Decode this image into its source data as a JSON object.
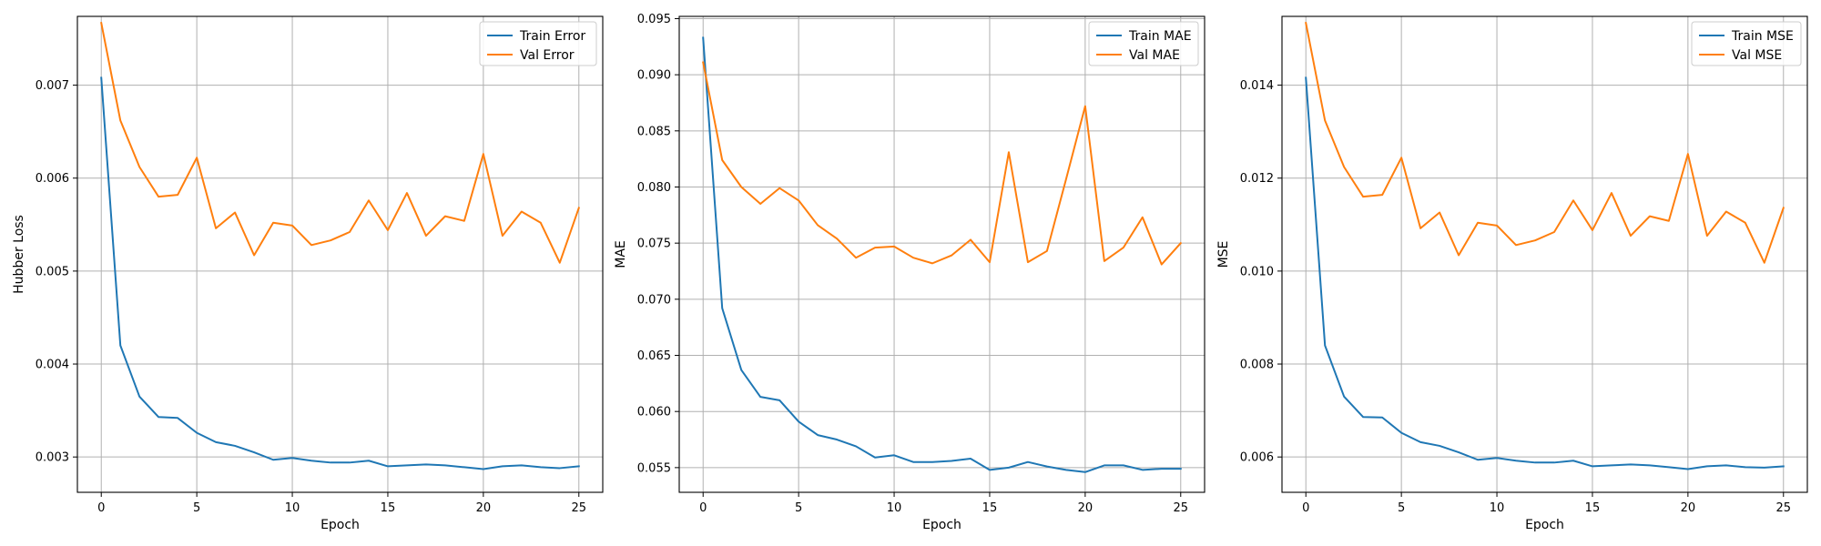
{
  "colors": {
    "train": "#1f77b4",
    "val": "#ff7f0e",
    "grid": "#b0b0b0",
    "axis": "#000000"
  },
  "chart_data": [
    {
      "type": "line",
      "xlabel": "Epoch",
      "ylabel": "Hubber Loss",
      "xlim": [
        -1.25,
        26.25
      ],
      "ylim": [
        0.00262,
        0.00774
      ],
      "xticks": [
        0,
        5,
        10,
        15,
        20,
        25
      ],
      "xtick_labels": [
        "0",
        "5",
        "10",
        "15",
        "20",
        "25"
      ],
      "yticks": [
        0.003,
        0.004,
        0.005,
        0.006,
        0.007
      ],
      "ytick_labels": [
        "0.003",
        "0.004",
        "0.005",
        "0.006",
        "0.007"
      ],
      "grid": true,
      "legend": "top-right",
      "x": [
        0,
        1,
        2,
        3,
        4,
        5,
        6,
        7,
        8,
        9,
        10,
        11,
        12,
        13,
        14,
        15,
        16,
        17,
        18,
        19,
        20,
        21,
        22,
        23,
        24,
        25
      ],
      "series": [
        {
          "name": "Train Error",
          "values": [
            0.00708,
            0.0042,
            0.00365,
            0.00343,
            0.00342,
            0.00326,
            0.00316,
            0.00312,
            0.00305,
            0.00297,
            0.00299,
            0.00296,
            0.00294,
            0.00294,
            0.00296,
            0.0029,
            0.00291,
            0.00292,
            0.00291,
            0.00289,
            0.00287,
            0.0029,
            0.00291,
            0.00289,
            0.00288,
            0.0029
          ]
        },
        {
          "name": "Val Error",
          "values": [
            0.00767,
            0.00662,
            0.00612,
            0.0058,
            0.00582,
            0.00622,
            0.00546,
            0.00563,
            0.00517,
            0.00552,
            0.00549,
            0.00528,
            0.00533,
            0.00542,
            0.00576,
            0.00544,
            0.00584,
            0.00538,
            0.00559,
            0.00554,
            0.00626,
            0.00538,
            0.00564,
            0.00552,
            0.00509,
            0.00568
          ]
        }
      ]
    },
    {
      "type": "line",
      "xlabel": "Epoch",
      "ylabel": "MAE",
      "xlim": [
        -1.25,
        26.25
      ],
      "ylim": [
        0.0528,
        0.0952
      ],
      "xticks": [
        0,
        5,
        10,
        15,
        20,
        25
      ],
      "xtick_labels": [
        "0",
        "5",
        "10",
        "15",
        "20",
        "25"
      ],
      "yticks": [
        0.055,
        0.06,
        0.065,
        0.07,
        0.075,
        0.08,
        0.085,
        0.09,
        0.095
      ],
      "ytick_labels": [
        "0.055",
        "0.060",
        "0.065",
        "0.070",
        "0.075",
        "0.080",
        "0.085",
        "0.090",
        "0.095"
      ],
      "grid": true,
      "legend": "top-right",
      "x": [
        0,
        1,
        2,
        3,
        4,
        5,
        6,
        7,
        8,
        9,
        10,
        11,
        12,
        13,
        14,
        15,
        16,
        17,
        18,
        19,
        20,
        21,
        22,
        23,
        24,
        25
      ],
      "series": [
        {
          "name": "Train MAE",
          "values": [
            0.0933,
            0.0692,
            0.0637,
            0.0613,
            0.061,
            0.0591,
            0.0579,
            0.0575,
            0.0569,
            0.0559,
            0.0561,
            0.0555,
            0.0555,
            0.0556,
            0.0558,
            0.0548,
            0.055,
            0.0555,
            0.0551,
            0.0548,
            0.0546,
            0.0552,
            0.0552,
            0.0548,
            0.0549,
            0.0549
          ]
        },
        {
          "name": "Val MAE",
          "values": [
            0.0911,
            0.0824,
            0.08,
            0.0785,
            0.0799,
            0.0788,
            0.0766,
            0.0754,
            0.0737,
            0.0746,
            0.0747,
            0.0737,
            0.0732,
            0.0739,
            0.0753,
            0.0733,
            0.0831,
            0.0733,
            0.0743,
            0.0807,
            0.0872,
            0.0734,
            0.0746,
            0.0773,
            0.0731,
            0.075
          ]
        }
      ]
    },
    {
      "type": "line",
      "xlabel": "Epoch",
      "ylabel": "MSE",
      "xlim": [
        -1.25,
        26.25
      ],
      "ylim": [
        0.00524,
        0.01548
      ],
      "xticks": [
        0,
        5,
        10,
        15,
        20,
        25
      ],
      "xtick_labels": [
        "0",
        "5",
        "10",
        "15",
        "20",
        "25"
      ],
      "yticks": [
        0.006,
        0.008,
        0.01,
        0.012,
        0.014
      ],
      "ytick_labels": [
        "0.006",
        "0.008",
        "0.010",
        "0.012",
        "0.014"
      ],
      "grid": true,
      "legend": "top-right",
      "x": [
        0,
        1,
        2,
        3,
        4,
        5,
        6,
        7,
        8,
        9,
        10,
        11,
        12,
        13,
        14,
        15,
        16,
        17,
        18,
        19,
        20,
        21,
        22,
        23,
        24,
        25
      ],
      "series": [
        {
          "name": "Train MSE",
          "values": [
            0.01416,
            0.0084,
            0.0073,
            0.00686,
            0.00685,
            0.00652,
            0.00632,
            0.00624,
            0.0061,
            0.00594,
            0.00598,
            0.00592,
            0.00588,
            0.00588,
            0.00592,
            0.0058,
            0.00582,
            0.00584,
            0.00582,
            0.00578,
            0.00574,
            0.0058,
            0.00582,
            0.00578,
            0.00577,
            0.0058
          ]
        },
        {
          "name": "Val MSE",
          "values": [
            0.01534,
            0.01324,
            0.01224,
            0.0116,
            0.01164,
            0.01244,
            0.01092,
            0.01126,
            0.01034,
            0.01104,
            0.01098,
            0.01056,
            0.01066,
            0.01084,
            0.01152,
            0.01088,
            0.01168,
            0.01076,
            0.01118,
            0.01108,
            0.01252,
            0.01076,
            0.01128,
            0.01104,
            0.01018,
            0.01136
          ]
        }
      ]
    }
  ]
}
